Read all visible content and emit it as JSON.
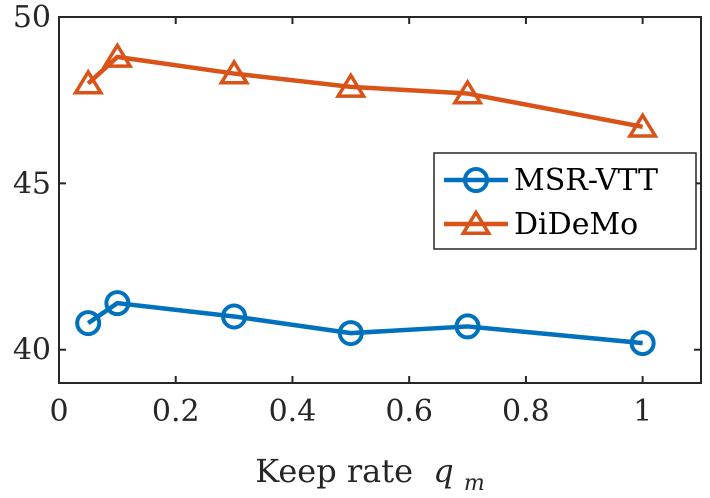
{
  "chart_data": {
    "type": "line",
    "title": "",
    "xlabel": "Keep rate",
    "xlabel_symbol": "q",
    "xlabel_subscript": "m",
    "ylabel": "",
    "xlim": [
      0,
      1.1
    ],
    "ylim": [
      39,
      50
    ],
    "xticks": [
      0,
      0.2,
      0.4,
      0.6,
      0.8,
      1
    ],
    "xtick_labels": [
      "0",
      "0.2",
      "0.4",
      "0.6",
      "0.8",
      "1"
    ],
    "yticks": [
      40,
      45,
      50
    ],
    "ytick_labels": [
      "40",
      "45",
      "50"
    ],
    "grid": false,
    "legend_position": "right",
    "series": [
      {
        "name": "MSR-VTT",
        "color": "#0072BD",
        "marker": "circle",
        "x": [
          0.05,
          0.1,
          0.3,
          0.5,
          0.7,
          1.0
        ],
        "values": [
          40.8,
          41.4,
          41.0,
          40.5,
          40.7,
          40.2
        ]
      },
      {
        "name": "DiDeMo",
        "color": "#D95319",
        "marker": "triangle",
        "x": [
          0.05,
          0.1,
          0.3,
          0.5,
          0.7,
          1.0
        ],
        "values": [
          48.0,
          48.8,
          48.3,
          47.9,
          47.7,
          46.7
        ]
      }
    ]
  }
}
